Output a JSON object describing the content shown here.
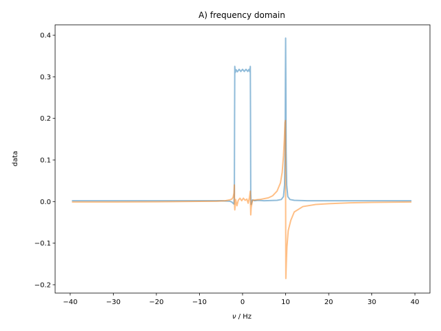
{
  "chart_data": {
    "type": "line",
    "title": "A) frequency domain",
    "xlabel_symbol": "ν",
    "xlabel_unit": " / Hz",
    "ylabel": "data",
    "xlim": [
      -43.5,
      43.5
    ],
    "ylim": [
      -0.22,
      0.425
    ],
    "grid": false,
    "xticks": [
      -40,
      -30,
      -20,
      -10,
      0,
      10,
      20,
      30,
      40
    ],
    "xtick_labels": [
      "−40",
      "−30",
      "−20",
      "−10",
      "0",
      "10",
      "20",
      "30",
      "40"
    ],
    "yticks": [
      -0.2,
      -0.1,
      0.0,
      0.1,
      0.2,
      0.3,
      0.4
    ],
    "ytick_labels": [
      "−0.2",
      "−0.1",
      "0.0",
      "0.1",
      "0.2",
      "0.3",
      "0.4"
    ],
    "series": [
      {
        "color": "#1f77b4",
        "points": [
          [
            -39.6,
            0.002
          ],
          [
            -30,
            0.002
          ],
          [
            -20,
            0.002
          ],
          [
            -10,
            0.002
          ],
          [
            -5,
            0.002
          ],
          [
            -3,
            0.001
          ],
          [
            -2.5,
            -0.001
          ],
          [
            -2.2,
            -0.004
          ],
          [
            -2.0,
            -0.006
          ],
          [
            -1.9,
            0.02
          ],
          [
            -1.85,
            0.2
          ],
          [
            -1.8,
            0.325
          ],
          [
            -1.7,
            0.31
          ],
          [
            -1.5,
            0.317
          ],
          [
            -1.2,
            0.312
          ],
          [
            -0.8,
            0.318
          ],
          [
            -0.4,
            0.313
          ],
          [
            0,
            0.318
          ],
          [
            0.4,
            0.313
          ],
          [
            0.8,
            0.318
          ],
          [
            1.2,
            0.313
          ],
          [
            1.5,
            0.318
          ],
          [
            1.7,
            0.312
          ],
          [
            1.8,
            0.325
          ],
          [
            1.85,
            0.2
          ],
          [
            1.9,
            0.02
          ],
          [
            2.0,
            -0.007
          ],
          [
            2.3,
            0.004
          ],
          [
            2.8,
            0.002
          ],
          [
            3.5,
            0.003
          ],
          [
            5,
            0.002
          ],
          [
            8,
            0.003
          ],
          [
            9,
            0.005
          ],
          [
            9.5,
            0.012
          ],
          [
            9.75,
            0.04
          ],
          [
            9.88,
            0.12
          ],
          [
            9.95,
            0.3
          ],
          [
            10.0,
            0.393
          ],
          [
            10.05,
            0.3
          ],
          [
            10.12,
            0.12
          ],
          [
            10.25,
            0.04
          ],
          [
            10.5,
            0.012
          ],
          [
            11,
            0.005
          ],
          [
            12,
            0.003
          ],
          [
            15,
            0.002
          ],
          [
            20,
            0.002
          ],
          [
            30,
            0.002
          ],
          [
            39.2,
            0.002
          ]
        ]
      },
      {
        "color": "#ff7f0e",
        "points": [
          [
            -39.6,
            -0.001
          ],
          [
            -30,
            -0.001
          ],
          [
            -20,
            -0.0005
          ],
          [
            -10,
            0.0005
          ],
          [
            -6,
            0.001
          ],
          [
            -4,
            0.002
          ],
          [
            -3,
            0.004
          ],
          [
            -2.5,
            0.006
          ],
          [
            -2.2,
            0.01
          ],
          [
            -2.0,
            0.02
          ],
          [
            -1.9,
            0.04
          ],
          [
            -1.85,
            -0.01
          ],
          [
            -1.8,
            -0.02
          ],
          [
            -1.6,
            0.005
          ],
          [
            -1.3,
            -0.01
          ],
          [
            -1.0,
            0.003
          ],
          [
            -0.6,
            0.008
          ],
          [
            -0.2,
            0.002
          ],
          [
            0.2,
            0.008
          ],
          [
            0.6,
            0.003
          ],
          [
            1.0,
            0.006
          ],
          [
            1.3,
            -0.004
          ],
          [
            1.6,
            0.01
          ],
          [
            1.8,
            0.025
          ],
          [
            1.85,
            -0.01
          ],
          [
            1.9,
            -0.032
          ],
          [
            2.0,
            -0.015
          ],
          [
            2.3,
            0.003
          ],
          [
            3,
            0.004
          ],
          [
            4,
            0.005
          ],
          [
            5,
            0.007
          ],
          [
            6,
            0.009
          ],
          [
            7,
            0.014
          ],
          [
            8,
            0.025
          ],
          [
            8.8,
            0.045
          ],
          [
            9.2,
            0.07
          ],
          [
            9.5,
            0.11
          ],
          [
            9.7,
            0.15
          ],
          [
            9.85,
            0.19
          ],
          [
            9.95,
            0.195
          ],
          [
            10.0,
            0.0
          ],
          [
            10.05,
            -0.185
          ],
          [
            10.15,
            -0.15
          ],
          [
            10.3,
            -0.11
          ],
          [
            10.6,
            -0.07
          ],
          [
            11.2,
            -0.045
          ],
          [
            12,
            -0.025
          ],
          [
            14,
            -0.012
          ],
          [
            17,
            -0.007
          ],
          [
            20,
            -0.005
          ],
          [
            25,
            -0.003
          ],
          [
            30,
            -0.002
          ],
          [
            39.2,
            -0.001
          ]
        ]
      }
    ]
  }
}
